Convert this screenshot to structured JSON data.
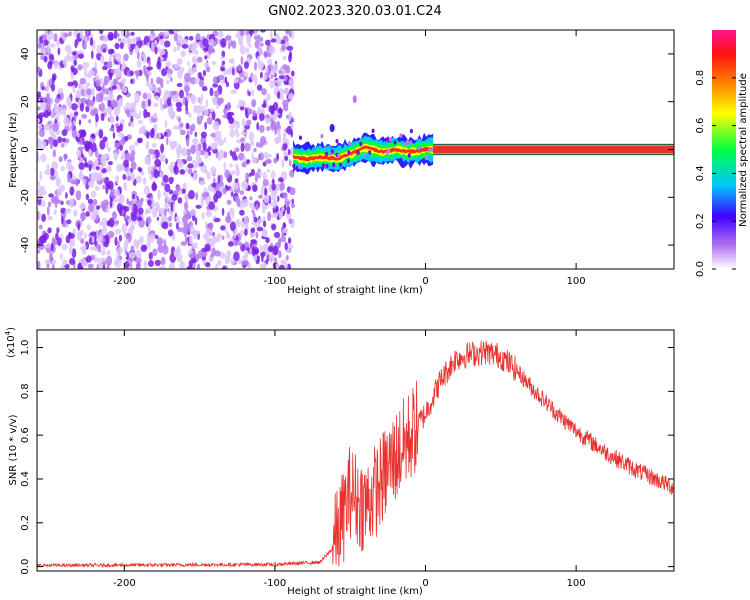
{
  "title": "GN02.2023.320.03.01.C24",
  "chart_data": [
    {
      "type": "heatmap",
      "xlabel": "Height of straight line (km)",
      "ylabel": "Frequency (Hz)",
      "xlim": [
        -258,
        165
      ],
      "ylim": [
        -50,
        50
      ],
      "xticks": [
        -200,
        -100,
        0,
        100
      ],
      "yticks": [
        -40,
        -20,
        0,
        20,
        40
      ],
      "grid": false,
      "colorbar": {
        "label": "Normalized spectral amplitude",
        "range": [
          0,
          1
        ],
        "ticks": [
          "0.0",
          "0.2",
          "0.4",
          "0.6",
          "0.8"
        ],
        "colormap": [
          "#ffffff",
          "#8a2be2",
          "#0000ff",
          "#00ffff",
          "#00ff00",
          "#ffff00",
          "#ff8c00",
          "#ff0000",
          "#ff1493"
        ]
      },
      "regions": [
        {
          "x": [
            -258,
            -88
          ],
          "y": [
            -50,
            50
          ],
          "amplitude": 0.15
        },
        {
          "x": [
            -88,
            5
          ],
          "y": [
            -6,
            6
          ],
          "amplitude": 0.6
        },
        {
          "x": [
            5,
            165
          ],
          "y": [
            -1.5,
            1.5
          ],
          "amplitude": 0.9
        }
      ],
      "ridge": {
        "x": [
          -88,
          -80,
          -70,
          -60,
          -50,
          -40,
          -30,
          -20,
          -10,
          0,
          165
        ],
        "y": [
          -3,
          -4,
          -3,
          -4,
          -2,
          1,
          -1,
          0,
          -1,
          0,
          0
        ]
      }
    },
    {
      "type": "line",
      "xlabel": "Height of straight line (km)",
      "ylabel": "SNR (10 * v/v)",
      "yscale_label": "(x10",
      "yscale_exp": "4",
      "yscale_close": ")",
      "xlim": [
        -258,
        165
      ],
      "ylim": [
        -0.02,
        1.08
      ],
      "xticks": [
        -200,
        -100,
        0,
        100
      ],
      "yticks": [
        "0.0",
        "0.2",
        "0.4",
        "0.6",
        "0.8",
        "1.0"
      ],
      "grid": false,
      "color": "#e8322f",
      "envelope": {
        "x": [
          -258,
          -100,
          -70,
          -62,
          -55,
          -50,
          -45,
          -40,
          -35,
          -30,
          -25,
          -20,
          -15,
          -10,
          -5,
          0,
          10,
          20,
          30,
          40,
          50,
          60,
          70,
          80,
          90,
          100,
          120,
          140,
          165
        ],
        "y": [
          0.005,
          0.01,
          0.02,
          0.08,
          0.22,
          0.35,
          0.3,
          0.28,
          0.33,
          0.38,
          0.45,
          0.5,
          0.55,
          0.6,
          0.65,
          0.7,
          0.85,
          0.95,
          0.97,
          0.98,
          0.96,
          0.9,
          0.82,
          0.75,
          0.68,
          0.62,
          0.52,
          0.44,
          0.36
        ]
      },
      "noise_amplitude": [
        {
          "x": [
            -258,
            -62
          ],
          "amp": 0.008
        },
        {
          "x": [
            -62,
            -5
          ],
          "amp": 0.22
        },
        {
          "x": [
            -5,
            60
          ],
          "amp": 0.06
        },
        {
          "x": [
            60,
            165
          ],
          "amp": 0.04
        }
      ]
    }
  ]
}
